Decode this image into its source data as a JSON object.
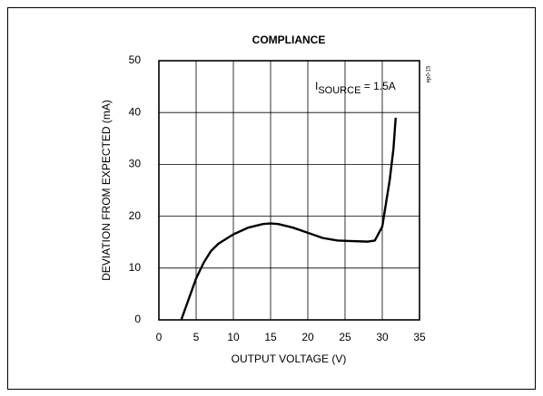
{
  "chart_data": {
    "type": "line",
    "title": "COMPLIANCE",
    "xlabel": "OUTPUT VOLTAGE (V)",
    "ylabel": "DEVIATION FROM EXPECTED (mA)",
    "annotation": {
      "main": "I",
      "sub": "SOURCE",
      "rest": " = 1.5A"
    },
    "code": "ep0-15",
    "x": [
      3,
      4,
      5,
      6,
      7,
      8,
      10,
      12,
      14,
      15,
      16,
      18,
      20,
      22,
      24,
      26,
      28,
      29,
      30,
      31,
      31.5,
      31.8
    ],
    "series": [
      {
        "color": "#000000",
        "values": [
          0,
          4,
          8,
          11,
          13.3,
          14.7,
          16.5,
          17.8,
          18.5,
          18.6,
          18.5,
          17.8,
          16.8,
          15.8,
          15.3,
          15.2,
          15.1,
          15.3,
          18,
          27,
          33,
          39
        ]
      }
    ],
    "xlim": [
      0,
      35
    ],
    "xticks": [
      0,
      5,
      10,
      15,
      20,
      25,
      30,
      35
    ],
    "ylim": [
      0,
      50
    ],
    "yticks": [
      0,
      10,
      20,
      30,
      40,
      50
    ],
    "grid": true
  }
}
